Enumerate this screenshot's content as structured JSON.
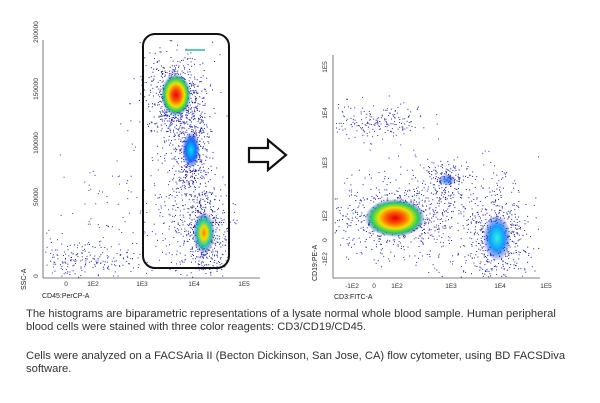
{
  "figure": {
    "left_plot": {
      "x_axis_label": "CD45:PerCP-A",
      "y_axis_label": "SSC-A",
      "x_ticks": [
        "0",
        "1E2",
        "1E3",
        "1E4",
        "1E5"
      ],
      "y_ticks": [
        "0",
        "50000",
        "100000",
        "150000",
        "200000"
      ]
    },
    "right_plot": {
      "x_axis_label": "CD3:FITC-A",
      "y_axis_label": "CD19:PE-A",
      "x_ticks": [
        "-1E2",
        "0",
        "1E2",
        "1E3",
        "1E4",
        "1E5"
      ],
      "y_ticks": [
        "-1E2",
        "0",
        "1E2",
        "1E3",
        "1E4",
        "1E5"
      ]
    },
    "arrow_icon": "right-arrow-icon"
  },
  "caption": {
    "paragraph1": "The histograms are biparametric representations of a lysate normal whole blood sample. Human peripheral blood cells were stained with three color reagents: CD3/CD19/CD45.",
    "paragraph2": "Cells were analyzed on a FACSAria II (Becton Dickinson, San Jose, CA)  flow cytometer, using BD FACSDiva software."
  }
}
